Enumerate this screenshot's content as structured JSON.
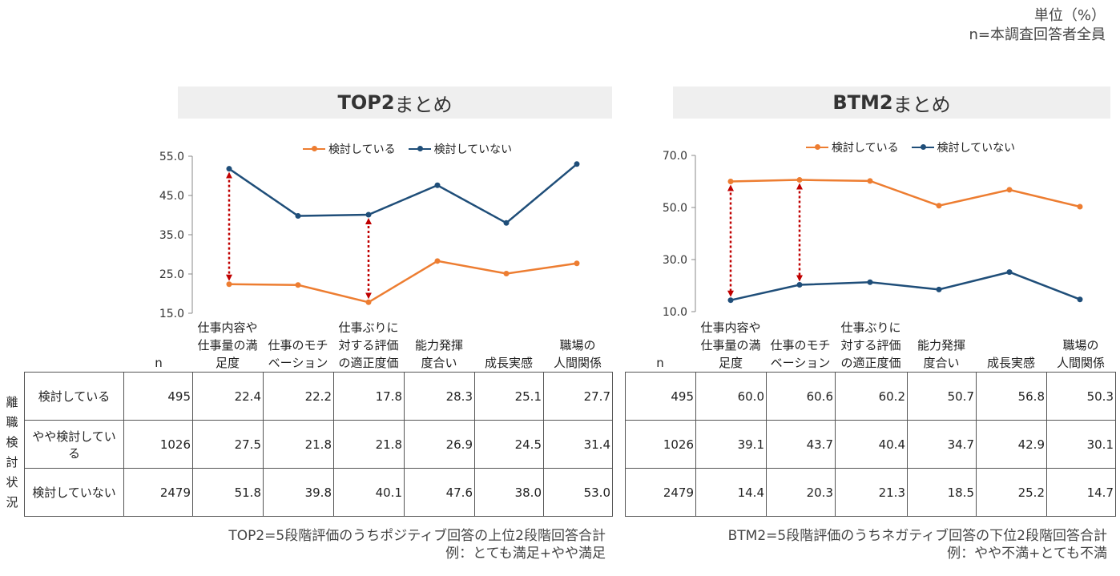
{
  "unit": {
    "line1": "単位（%）",
    "line2": "n=本調査回答者全員"
  },
  "colors": {
    "consider": "#ed7d31",
    "not_consider": "#1f4e79",
    "arrow": "#c00000"
  },
  "legend": {
    "consider": "検討している",
    "not_consider": "検討していない"
  },
  "side_label": [
    "離",
    "職",
    "検",
    "討",
    "状",
    "況"
  ],
  "columns": {
    "n": "n",
    "c1": [
      "仕事内容や",
      "仕事量の満",
      "足度"
    ],
    "c2": [
      "仕事のモチ",
      "ベーション"
    ],
    "c3": [
      "仕事ぶりに",
      "対する評価",
      "の適正度価"
    ],
    "c4": [
      "能力発揮",
      "度合い"
    ],
    "c5": [
      "成長実感"
    ],
    "c6": [
      "職場の",
      "人間関係"
    ]
  },
  "rows": {
    "r1": "検討している",
    "r2": "やや検討している",
    "r3": "検討していない"
  },
  "top2": {
    "title_bold": "TOP2",
    "title_rest": "まとめ",
    "footnote1": "TOP2=5段階評価のうちポジティブ回答の上位2段階回答合計",
    "footnote2": "例：とても満足+やや満足",
    "table": [
      {
        "n": "495",
        "vals": [
          "22.4",
          "22.2",
          "17.8",
          "28.3",
          "25.1",
          "27.7"
        ]
      },
      {
        "n": "1026",
        "vals": [
          "27.5",
          "21.8",
          "21.8",
          "26.9",
          "24.5",
          "31.4"
        ]
      },
      {
        "n": "2479",
        "vals": [
          "51.8",
          "39.8",
          "40.1",
          "47.6",
          "38.0",
          "53.0"
        ]
      }
    ]
  },
  "btm2": {
    "title_bold": "BTM2",
    "title_rest": "まとめ",
    "footnote1": "BTM2=5段階評価のうちネガティブ回答の下位2段階回答合計",
    "footnote2": "例：やや不満+とても不満",
    "table": [
      {
        "n": "495",
        "vals": [
          "60.0",
          "60.6",
          "60.2",
          "50.7",
          "56.8",
          "50.3"
        ]
      },
      {
        "n": "1026",
        "vals": [
          "39.1",
          "43.7",
          "40.4",
          "34.7",
          "42.9",
          "30.1"
        ]
      },
      {
        "n": "2479",
        "vals": [
          "14.4",
          "20.3",
          "21.3",
          "18.5",
          "25.2",
          "14.7"
        ]
      }
    ]
  },
  "chart_data": [
    {
      "type": "line",
      "title": "TOP2まとめ",
      "categories": [
        "仕事内容や仕事量の満足度",
        "仕事のモチベーション",
        "仕事ぶりに対する評価の適正度価",
        "能力発揮度合い",
        "成長実感",
        "職場の人間関係"
      ],
      "series": [
        {
          "name": "検討している",
          "values": [
            22.4,
            22.2,
            17.8,
            28.3,
            25.1,
            27.7
          ]
        },
        {
          "name": "検討していない",
          "values": [
            51.8,
            39.8,
            40.1,
            47.6,
            38.0,
            53.0
          ]
        }
      ],
      "ylim": [
        15.0,
        55.0
      ],
      "yticks": [
        "15.0",
        "25.0",
        "35.0",
        "45.0",
        "55.0"
      ],
      "legend": "top",
      "arrows_at": [
        0,
        2
      ]
    },
    {
      "type": "line",
      "title": "BTM2まとめ",
      "categories": [
        "仕事内容や仕事量の満足度",
        "仕事のモチベーション",
        "仕事ぶりに対する評価の適正度価",
        "能力発揮度合い",
        "成長実感",
        "職場の人間関係"
      ],
      "series": [
        {
          "name": "検討している",
          "values": [
            60.0,
            60.6,
            60.2,
            50.7,
            56.8,
            50.3
          ]
        },
        {
          "name": "検討していない",
          "values": [
            14.4,
            20.3,
            21.3,
            18.5,
            25.2,
            14.7
          ]
        }
      ],
      "ylim": [
        10.0,
        70.0
      ],
      "yticks": [
        "10.0",
        "30.0",
        "50.0",
        "70.0"
      ],
      "legend": "top",
      "arrows_at": [
        0,
        1
      ]
    }
  ]
}
